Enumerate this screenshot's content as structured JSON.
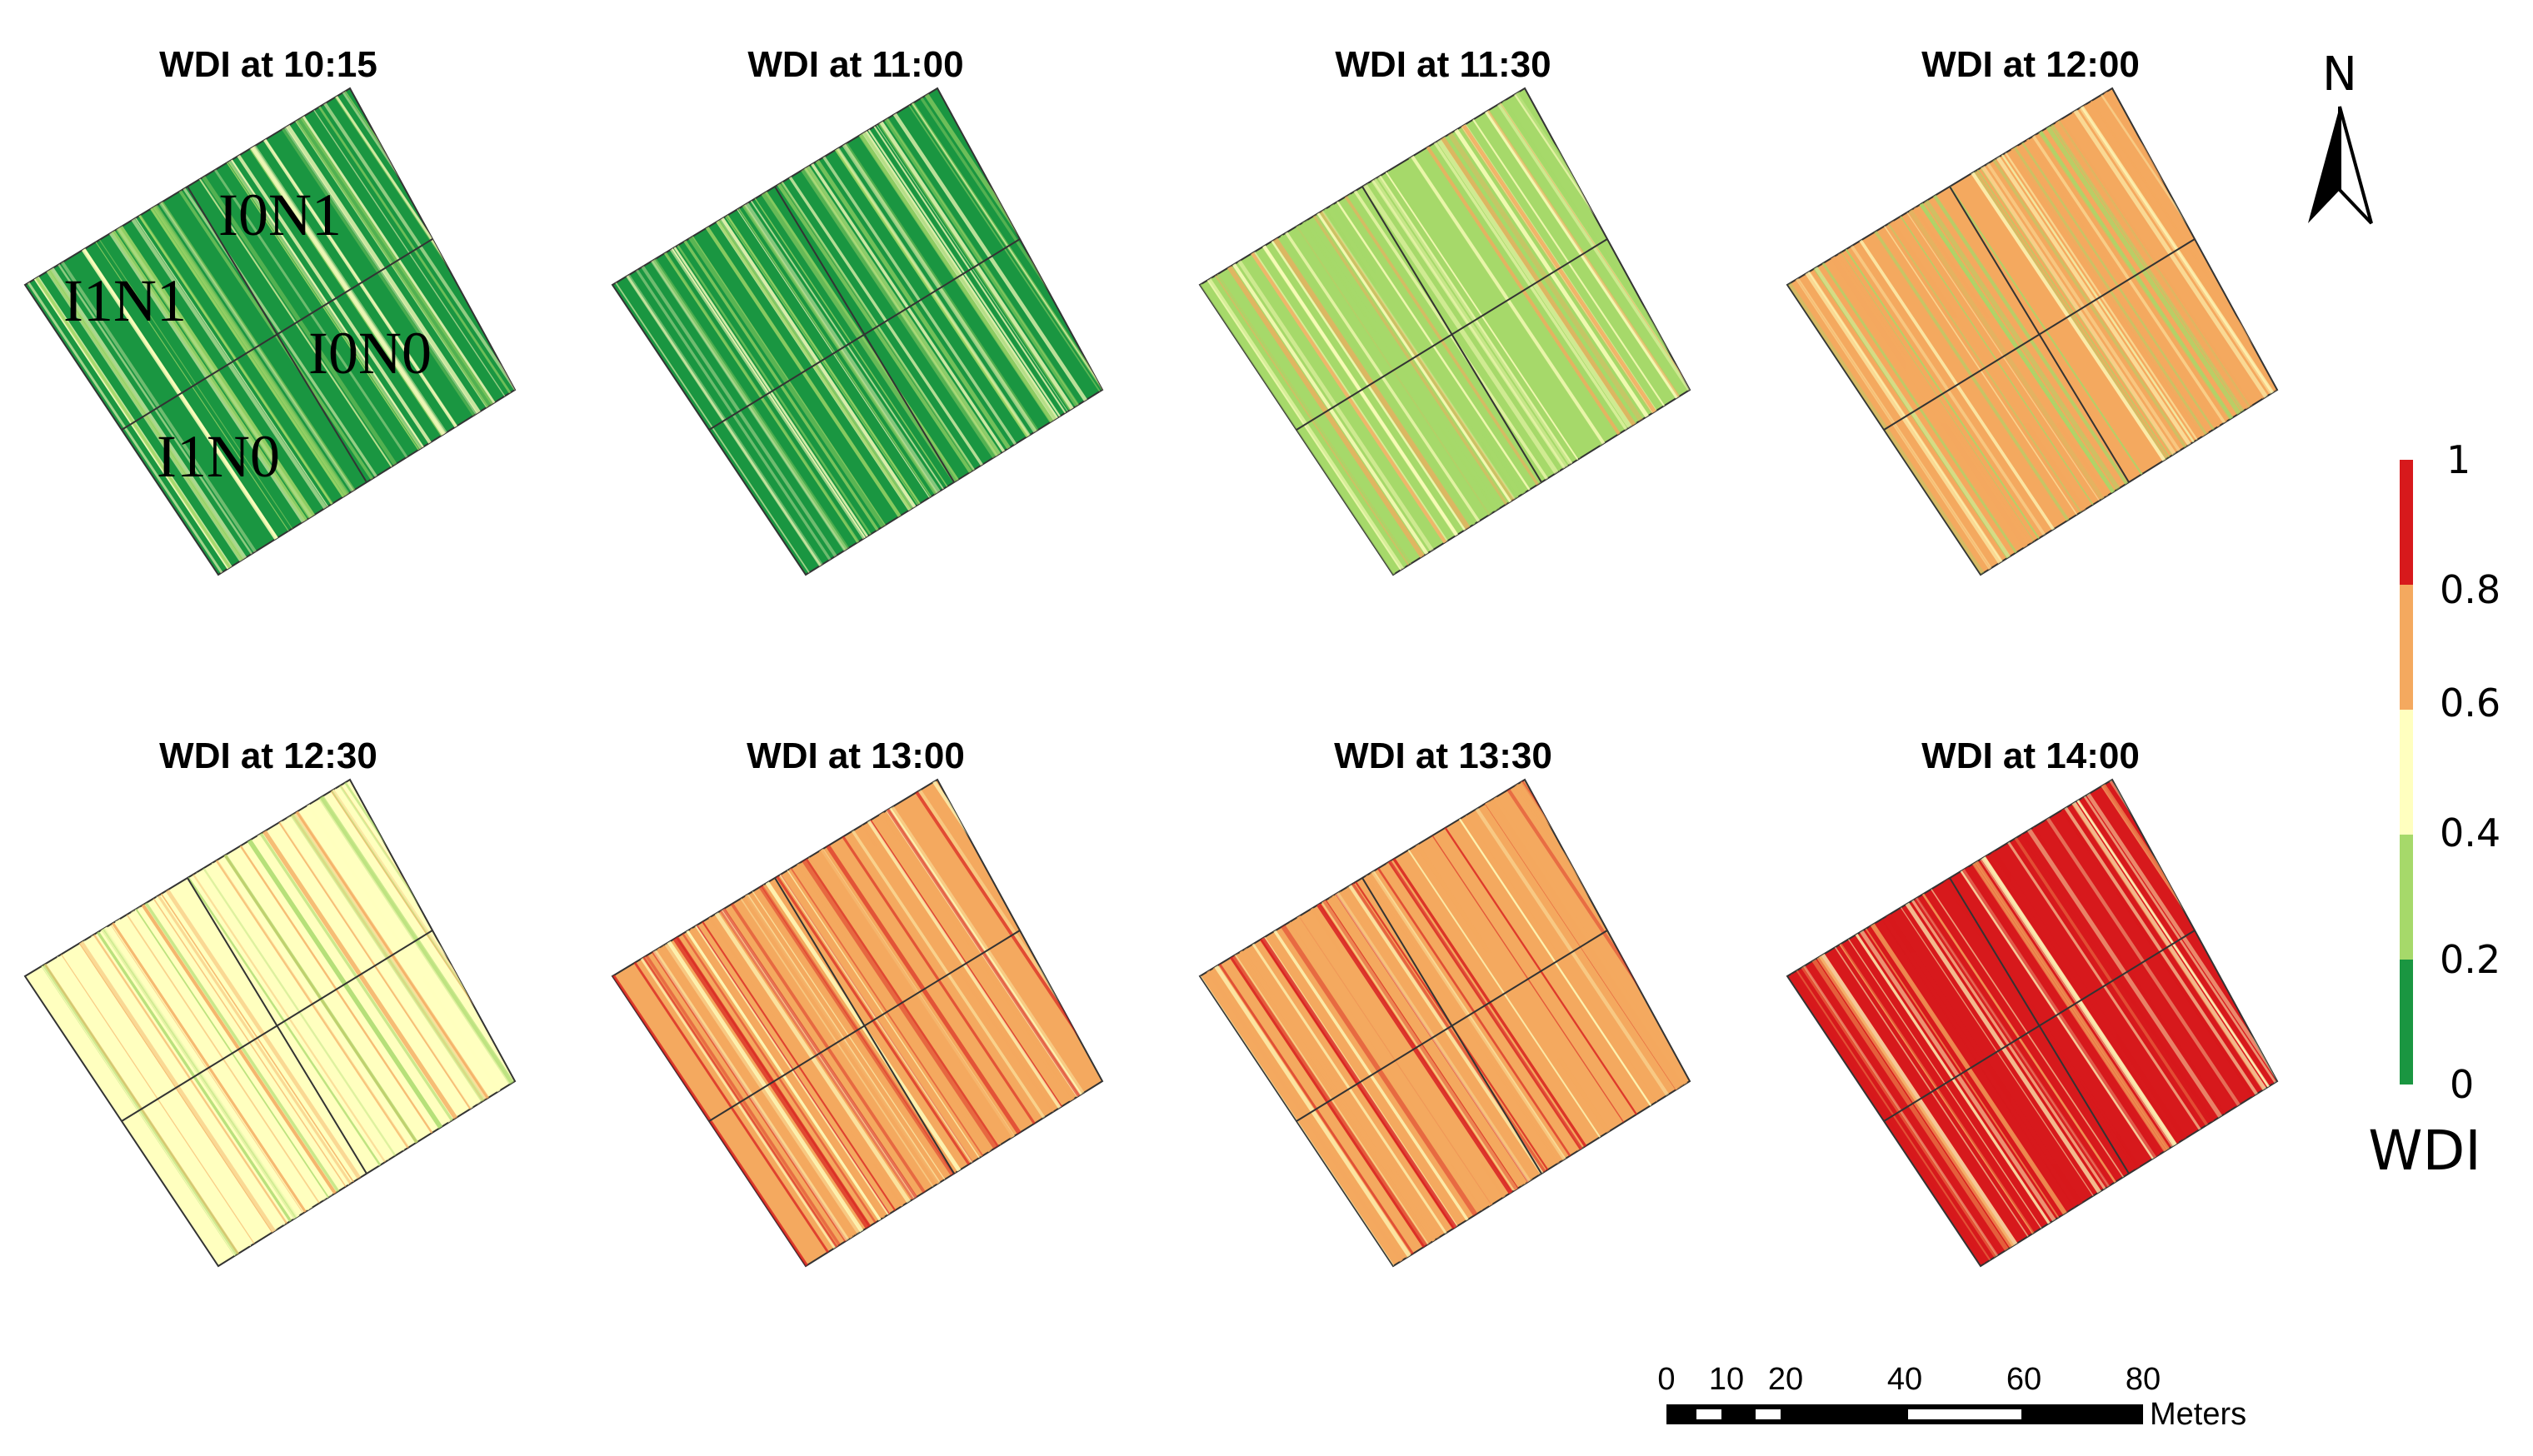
{
  "figure": {
    "panels": [
      {
        "title": "WDI at 10:15",
        "dominant_class": "0-0.2",
        "mean_wdi": 0.1,
        "plot_labels": [
          "I0N1",
          "I1N1",
          "I0N0",
          "I1N0"
        ]
      },
      {
        "title": "WDI at 11:00",
        "dominant_class": "0-0.2",
        "mean_wdi": 0.2,
        "plot_labels": []
      },
      {
        "title": "WDI at 11:30",
        "dominant_class": "0.2-0.4",
        "mean_wdi": 0.35,
        "plot_labels": []
      },
      {
        "title": "WDI at 12:00",
        "dominant_class": "0.6-0.8",
        "mean_wdi": 0.58,
        "plot_labels": []
      },
      {
        "title": "WDI at 12:30",
        "dominant_class": "0.4-0.6",
        "mean_wdi": 0.55,
        "plot_labels": []
      },
      {
        "title": "WDI at 13:00",
        "dominant_class": "0.6-0.8",
        "mean_wdi": 0.72,
        "plot_labels": []
      },
      {
        "title": "WDI at 13:30",
        "dominant_class": "0.6-0.8",
        "mean_wdi": 0.66,
        "plot_labels": []
      },
      {
        "title": "WDI at 14:00",
        "dominant_class": "0.8-1",
        "mean_wdi": 0.82,
        "plot_labels": []
      }
    ]
  },
  "legend": {
    "title": "WDI",
    "ticks": [
      "1",
      "0.8",
      "0.6",
      "0.4",
      "0.2",
      "0"
    ],
    "classes": [
      {
        "range": "0.8-1",
        "color": "#d7191c"
      },
      {
        "range": "0.6-0.8",
        "color": "#f4a95f"
      },
      {
        "range": "0.4-0.6",
        "color": "#ffffbf"
      },
      {
        "range": "0.2-0.4",
        "color": "#a6d96a"
      },
      {
        "range": "0-0.2",
        "color": "#1a9641"
      }
    ]
  },
  "north_arrow": {
    "label": "N",
    "icon": "north-arrow-icon"
  },
  "scale_bar": {
    "ticks": [
      "0",
      "10",
      "20",
      "40",
      "60",
      "80"
    ],
    "unit": "Meters"
  },
  "colors": {
    "field_outline": "#333333",
    "stripe_dark": "#000000",
    "stripe_light": "#ffffff"
  }
}
